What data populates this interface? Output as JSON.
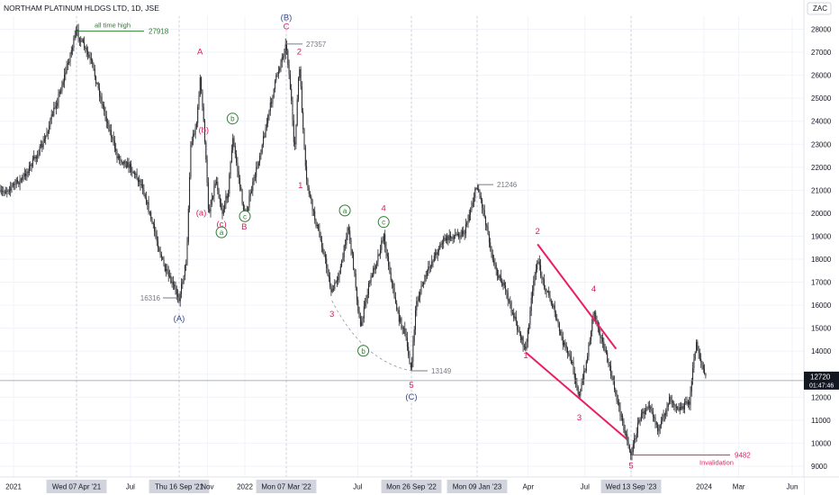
{
  "chart_data": {
    "type": "candlestick",
    "title": "NORTHAM PLATINUM HLDGS LTD, 1D, JSE",
    "currency": "ZAC",
    "ylim": [
      8600,
      28800
    ],
    "y_ticks": [
      9000,
      10000,
      11000,
      12000,
      13000,
      14000,
      15000,
      16000,
      17000,
      18000,
      19000,
      20000,
      21000,
      22000,
      23000,
      24000,
      25000,
      26000,
      27000,
      28000
    ],
    "x_ticks": [
      {
        "label": "2021",
        "date": "2021-01-01",
        "highlight": false
      },
      {
        "label": "Wed 07 Apr '21",
        "date": "2021-04-07",
        "highlight": true
      },
      {
        "label": "Jul",
        "date": "2021-07-01",
        "highlight": false
      },
      {
        "label": "Thu 16 Sep '21",
        "date": "2021-09-16",
        "highlight": true
      },
      {
        "label": "Nov",
        "date": "2021-11-01",
        "highlight": false
      },
      {
        "label": "2022",
        "date": "2022-01-01",
        "highlight": false
      },
      {
        "label": "Mon 07 Mar '22",
        "date": "2022-03-07",
        "highlight": true
      },
      {
        "label": "Jul",
        "date": "2022-07-01",
        "highlight": false
      },
      {
        "label": "Mon 26 Sep '22",
        "date": "2022-09-26",
        "highlight": true
      },
      {
        "label": "Mon 09 Jan '23",
        "date": "2023-01-09",
        "highlight": true
      },
      {
        "label": "Apr",
        "date": "2023-04-01",
        "highlight": false
      },
      {
        "label": "Jul",
        "date": "2023-07-01",
        "highlight": false
      },
      {
        "label": "Wed 13 Sep '23",
        "date": "2023-09-13",
        "highlight": true
      },
      {
        "label": "2024",
        "date": "2024-01-01",
        "highlight": false
      },
      {
        "label": "Mar",
        "date": "2024-03-01",
        "highlight": false
      },
      {
        "label": "Jun",
        "date": "2024-06-01",
        "highlight": false
      }
    ],
    "price_path": [
      {
        "date": "2020-11-01",
        "price": 19000
      },
      {
        "date": "2020-12-01",
        "price": 20500
      },
      {
        "date": "2021-01-15",
        "price": 21500
      },
      {
        "date": "2021-02-15",
        "price": 23000
      },
      {
        "date": "2021-03-15",
        "price": 25500
      },
      {
        "date": "2021-04-07",
        "price": 27918
      },
      {
        "date": "2021-05-01",
        "price": 26500
      },
      {
        "date": "2021-05-20",
        "price": 24500
      },
      {
        "date": "2021-06-10",
        "price": 22500
      },
      {
        "date": "2021-07-01",
        "price": 22000
      },
      {
        "date": "2021-07-20",
        "price": 21200
      },
      {
        "date": "2021-08-05",
        "price": 19500
      },
      {
        "date": "2021-08-25",
        "price": 17500
      },
      {
        "date": "2021-09-16",
        "price": 16316
      },
      {
        "date": "2021-09-28",
        "price": 18000
      },
      {
        "date": "2021-10-05",
        "price": 23000
      },
      {
        "date": "2021-10-15",
        "price": 24000
      },
      {
        "date": "2021-10-20",
        "price": 25900
      },
      {
        "date": "2021-10-27",
        "price": 23600
      },
      {
        "date": "2021-11-03",
        "price": 20000
      },
      {
        "date": "2021-11-15",
        "price": 21500
      },
      {
        "date": "2021-11-25",
        "price": 20000
      },
      {
        "date": "2021-12-05",
        "price": 21000
      },
      {
        "date": "2021-12-12",
        "price": 23300
      },
      {
        "date": "2021-12-25",
        "price": 21000
      },
      {
        "date": "2022-01-01",
        "price": 19800
      },
      {
        "date": "2022-01-20",
        "price": 22000
      },
      {
        "date": "2022-02-05",
        "price": 24000
      },
      {
        "date": "2022-02-20",
        "price": 26000
      },
      {
        "date": "2022-03-07",
        "price": 27357
      },
      {
        "date": "2022-03-15",
        "price": 25000
      },
      {
        "date": "2022-03-20",
        "price": 22500
      },
      {
        "date": "2022-03-28",
        "price": 26500
      },
      {
        "date": "2022-04-08",
        "price": 21500
      },
      {
        "date": "2022-04-20",
        "price": 20000
      },
      {
        "date": "2022-05-05",
        "price": 18500
      },
      {
        "date": "2022-05-20",
        "price": 16500
      },
      {
        "date": "2022-06-05",
        "price": 17800
      },
      {
        "date": "2022-06-15",
        "price": 19500
      },
      {
        "date": "2022-06-25",
        "price": 17500
      },
      {
        "date": "2022-07-05",
        "price": 15000
      },
      {
        "date": "2022-07-20",
        "price": 17000
      },
      {
        "date": "2022-08-01",
        "price": 18000
      },
      {
        "date": "2022-08-12",
        "price": 19000
      },
      {
        "date": "2022-08-25",
        "price": 17000
      },
      {
        "date": "2022-09-05",
        "price": 15500
      },
      {
        "date": "2022-09-15",
        "price": 14800
      },
      {
        "date": "2022-09-26",
        "price": 13149
      },
      {
        "date": "2022-10-03",
        "price": 16000
      },
      {
        "date": "2022-10-15",
        "price": 17000
      },
      {
        "date": "2022-10-30",
        "price": 18000
      },
      {
        "date": "2022-11-15",
        "price": 18800
      },
      {
        "date": "2022-12-01",
        "price": 19000
      },
      {
        "date": "2022-12-20",
        "price": 19200
      },
      {
        "date": "2023-01-09",
        "price": 21246
      },
      {
        "date": "2023-01-20",
        "price": 20000
      },
      {
        "date": "2023-02-05",
        "price": 17800
      },
      {
        "date": "2023-02-25",
        "price": 16500
      },
      {
        "date": "2023-03-15",
        "price": 15000
      },
      {
        "date": "2023-03-28",
        "price": 14000
      },
      {
        "date": "2023-04-05",
        "price": 16000
      },
      {
        "date": "2023-04-15",
        "price": 18000
      },
      {
        "date": "2023-04-25",
        "price": 17000
      },
      {
        "date": "2023-05-10",
        "price": 16000
      },
      {
        "date": "2023-05-25",
        "price": 14500
      },
      {
        "date": "2023-06-10",
        "price": 13500
      },
      {
        "date": "2023-06-22",
        "price": 12000
      },
      {
        "date": "2023-07-05",
        "price": 13800
      },
      {
        "date": "2023-07-15",
        "price": 15800
      },
      {
        "date": "2023-07-28",
        "price": 14500
      },
      {
        "date": "2023-08-10",
        "price": 13200
      },
      {
        "date": "2023-08-25",
        "price": 11500
      },
      {
        "date": "2023-09-13",
        "price": 9482
      },
      {
        "date": "2023-09-25",
        "price": 11000
      },
      {
        "date": "2023-10-10",
        "price": 11800
      },
      {
        "date": "2023-10-25",
        "price": 10500
      },
      {
        "date": "2023-11-10",
        "price": 12000
      },
      {
        "date": "2023-11-25",
        "price": 11500
      },
      {
        "date": "2023-12-10",
        "price": 11800
      },
      {
        "date": "2023-12-20",
        "price": 14400
      },
      {
        "date": "2023-12-28",
        "price": 13500
      },
      {
        "date": "2024-01-05",
        "price": 12720
      }
    ],
    "last_price": {
      "label": "12720",
      "countdown": "01:47:46",
      "value": 12720
    },
    "price_labels": [
      {
        "text": "27918",
        "date": "2021-04-07",
        "price": 27918
      },
      {
        "text": "27357",
        "date": "2022-03-07",
        "price": 27357
      },
      {
        "text": "21246",
        "date": "2023-01-09",
        "price": 21246
      },
      {
        "text": "16316",
        "date": "2021-09-16",
        "price": 16316
      },
      {
        "text": "13149",
        "date": "2022-09-26",
        "price": 13149
      },
      {
        "text": "9482",
        "date": "2023-09-13",
        "price": 9482
      }
    ],
    "annotations": {
      "all_time_high": "all time high",
      "invalidation": "Invalidation"
    },
    "wave_labels": [
      {
        "text": "(A)",
        "date": "2021-09-16",
        "price": 15300,
        "color": "#3a4a8c",
        "circle": false
      },
      {
        "text": "A",
        "date": "2021-10-20",
        "price": 26900,
        "color": "#d81b60",
        "circle": false
      },
      {
        "text": "(b)",
        "date": "2021-10-26",
        "price": 23500,
        "color": "#d81b60",
        "circle": false
      },
      {
        "text": "(a)",
        "date": "2021-10-22",
        "price": 19900,
        "color": "#d81b60",
        "circle": false
      },
      {
        "text": "(c)",
        "date": "2021-11-24",
        "price": 19400,
        "color": "#d81b60",
        "circle": false
      },
      {
        "text": "b",
        "date": "2021-12-12",
        "price": 24000,
        "color": "#2e7d32",
        "circle": true
      },
      {
        "text": "a",
        "date": "2021-11-24",
        "price": 19050,
        "color": "#2e7d32",
        "circle": true
      },
      {
        "text": "c",
        "date": "2022-01-01",
        "price": 19750,
        "color": "#2e7d32",
        "circle": true
      },
      {
        "text": "B",
        "date": "2021-12-31",
        "price": 19300,
        "color": "#d81b60",
        "circle": false
      },
      {
        "text": "(B)",
        "date": "2022-03-07",
        "price": 28400,
        "color": "#3a4a8c",
        "circle": false
      },
      {
        "text": "C",
        "date": "2022-03-07",
        "price": 28000,
        "color": "#d81b60",
        "circle": false
      },
      {
        "text": "2",
        "date": "2022-03-28",
        "price": 26900,
        "color": "#d81b60",
        "circle": false
      },
      {
        "text": "1",
        "date": "2022-03-30",
        "price": 21100,
        "color": "#d81b60",
        "circle": false
      },
      {
        "text": "a",
        "date": "2022-06-10",
        "price": 20000,
        "color": "#2e7d32",
        "circle": true
      },
      {
        "text": "4",
        "date": "2022-08-12",
        "price": 20100,
        "color": "#d81b60",
        "circle": false
      },
      {
        "text": "c",
        "date": "2022-08-12",
        "price": 19500,
        "color": "#2e7d32",
        "circle": true
      },
      {
        "text": "3",
        "date": "2022-05-20",
        "price": 15500,
        "color": "#d81b60",
        "circle": false
      },
      {
        "text": "b",
        "date": "2022-07-10",
        "price": 13900,
        "color": "#2e7d32",
        "circle": true
      },
      {
        "text": "5",
        "date": "2022-09-26",
        "price": 12400,
        "color": "#d81b60",
        "circle": false
      },
      {
        "text": "(C)",
        "date": "2022-09-26",
        "price": 11900,
        "color": "#3a4a8c",
        "circle": false
      },
      {
        "text": "2",
        "date": "2023-04-16",
        "price": 19100,
        "color": "#d81b60",
        "circle": false
      },
      {
        "text": "1",
        "date": "2023-03-28",
        "price": 13700,
        "color": "#d81b60",
        "circle": false
      },
      {
        "text": "4",
        "date": "2023-07-15",
        "price": 16600,
        "color": "#d81b60",
        "circle": false
      },
      {
        "text": "3",
        "date": "2023-06-22",
        "price": 11000,
        "color": "#d81b60",
        "circle": false
      },
      {
        "text": "5",
        "date": "2023-09-13",
        "price": 8900,
        "color": "#d81b60",
        "circle": false
      }
    ],
    "trendlines": [
      {
        "from": {
          "date": "2023-04-16",
          "price": 18650
        },
        "to": {
          "date": "2023-08-20",
          "price": 14100
        },
        "color": "#e91e63"
      },
      {
        "from": {
          "date": "2023-03-28",
          "price": 13950
        },
        "to": {
          "date": "2023-09-05",
          "price": 10200
        },
        "color": "#e91e63"
      }
    ],
    "dashed_curve": [
      {
        "date": "2022-05-20",
        "price": 16200
      },
      {
        "date": "2022-07-10",
        "price": 14400
      },
      {
        "date": "2022-09-26",
        "price": 13149
      }
    ],
    "colors": {
      "candle_up": "#26272b",
      "candle_down": "#26272b",
      "ath_line": "#2e7d32",
      "invalidation": "#e91e63",
      "last_price_bg": "#131722",
      "grid": "#f0f3fa"
    }
  }
}
